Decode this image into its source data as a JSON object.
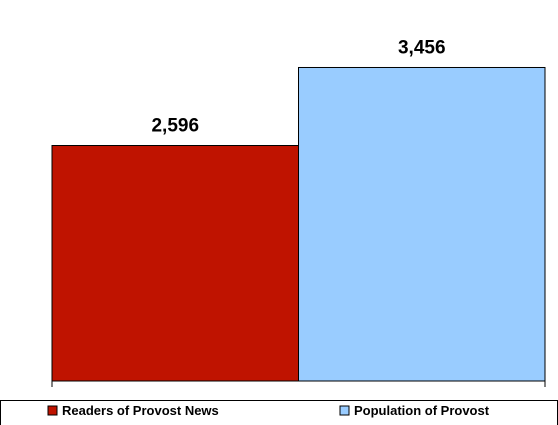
{
  "chart_data": {
    "type": "bar",
    "series": [
      {
        "name": "Readers of Provost News",
        "value": 2596,
        "label": "2,596",
        "color": "#bf1300"
      },
      {
        "name": "Population of Provost",
        "value": 3456,
        "label": "3,456",
        "color": "#99ccff"
      }
    ],
    "ylim": [
      0,
      4200
    ],
    "grid": false,
    "legend_position": "bottom"
  }
}
